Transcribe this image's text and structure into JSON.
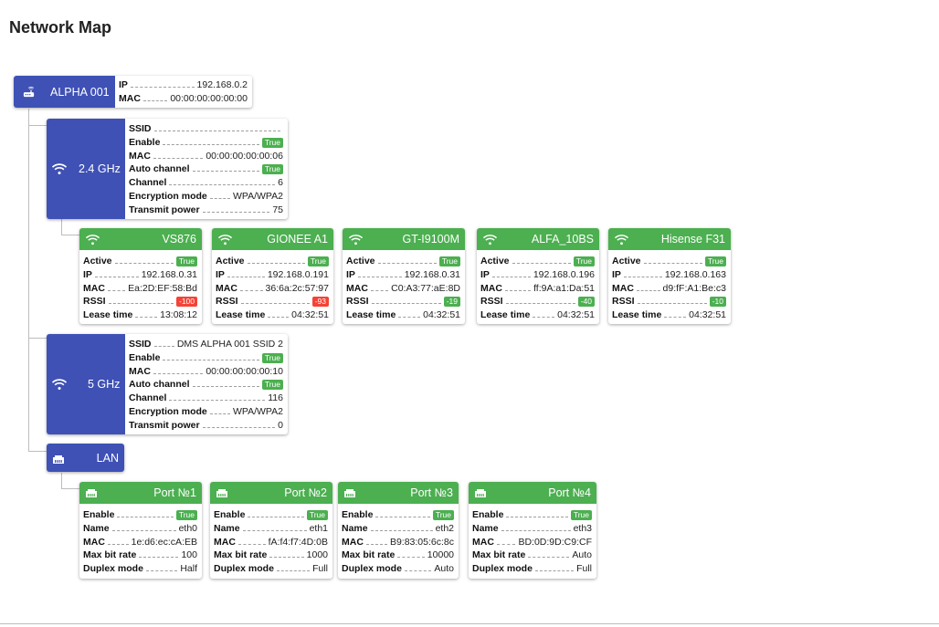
{
  "page": {
    "title": "Network Map"
  },
  "router": {
    "name": "ALPHA 001",
    "icon": "router-icon",
    "info": [
      {
        "key": "IP",
        "value": "192.168.0.2"
      },
      {
        "key": "MAC",
        "value": "00:00:00:00:00:00"
      }
    ]
  },
  "radio24": {
    "name": "2.4 GHz",
    "icon": "wifi-icon",
    "info": [
      {
        "key": "SSID",
        "value": ""
      },
      {
        "key": "Enable",
        "badge": "True"
      },
      {
        "key": "MAC",
        "value": "00:00:00:00:00:06"
      },
      {
        "key": "Auto channel",
        "badge": "True"
      },
      {
        "key": "Channel",
        "value": "6"
      },
      {
        "key": "Encryption mode",
        "value": "WPA/WPA2"
      },
      {
        "key": "Transmit power",
        "value": "75"
      }
    ]
  },
  "clients": [
    {
      "name": "VS876",
      "active": "True",
      "ip": "192.168.0.31",
      "mac": "Ea:2D:EF:58:Bd",
      "rssi": "-100",
      "rssi_color": "#f44336",
      "lease": "13:08:12"
    },
    {
      "name": "GIONEE A1",
      "active": "True",
      "ip": "192.168.0.191",
      "mac": "36:6a:2c:57:97",
      "rssi": "-93",
      "rssi_color": "#f44336",
      "lease": "04:32:51"
    },
    {
      "name": "GT-I9100M",
      "active": "True",
      "ip": "192.168.0.31",
      "mac": "C0:A3:77:aE:8D",
      "rssi": "-19",
      "rssi_color": "#4caf50",
      "lease": "04:32:51"
    },
    {
      "name": "ALFA_10BS",
      "active": "True",
      "ip": "192.168.0.196",
      "mac": "ff:9A:a1:Da:51",
      "rssi": "-40",
      "rssi_color": "#4caf50",
      "lease": "04:32:51"
    },
    {
      "name": "Hisense F31",
      "active": "True",
      "ip": "192.168.0.163",
      "mac": "d9:fF:A1:Be:c3",
      "rssi": "-10",
      "rssi_color": "#4caf50",
      "lease": "04:32:51"
    }
  ],
  "client_labels": {
    "active": "Active",
    "ip": "IP",
    "mac": "MAC",
    "rssi": "RSSI",
    "lease": "Lease time"
  },
  "radio5": {
    "name": "5 GHz",
    "icon": "wifi-icon",
    "info": [
      {
        "key": "SSID",
        "value": "DMS ALPHA 001 SSID 2"
      },
      {
        "key": "Enable",
        "badge": "True"
      },
      {
        "key": "MAC",
        "value": "00:00:00:00:00:10"
      },
      {
        "key": "Auto channel",
        "badge": "True"
      },
      {
        "key": "Channel",
        "value": "116"
      },
      {
        "key": "Encryption mode",
        "value": "WPA/WPA2"
      },
      {
        "key": "Transmit power",
        "value": "0"
      }
    ]
  },
  "lan": {
    "name": "LAN",
    "icon": "ethernet-icon"
  },
  "ports": [
    {
      "name": "Port №1",
      "enable": "True",
      "iface": "eth0",
      "mac": "1e:d6:ec:cA:EB",
      "bitrate": "100",
      "duplex": "Half"
    },
    {
      "name": "Port №2",
      "enable": "True",
      "iface": "eth1",
      "mac": "fA:f4:f7:4D:0B",
      "bitrate": "1000",
      "duplex": "Full"
    },
    {
      "name": "Port №3",
      "enable": "True",
      "iface": "eth2",
      "mac": "B9:83:05:6c:8c",
      "bitrate": "10000",
      "duplex": "Auto"
    },
    {
      "name": "Port №4",
      "enable": "True",
      "iface": "eth3",
      "mac": "BD:0D:9D:C9:CF",
      "bitrate": "Auto",
      "duplex": "Full"
    }
  ],
  "port_labels": {
    "enable": "Enable",
    "name": "Name",
    "mac": "MAC",
    "bitrate": "Max bit rate",
    "duplex": "Duplex mode"
  },
  "colors": {
    "blue": "#3f51b5",
    "green": "#4caf50",
    "red": "#f44336"
  }
}
